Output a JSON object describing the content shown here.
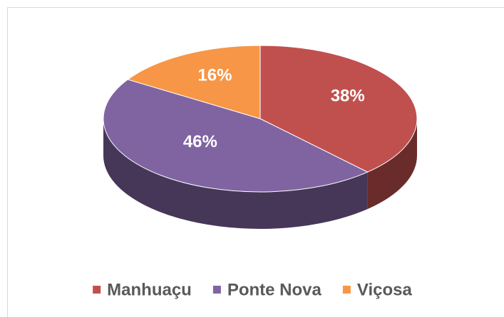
{
  "chart_data": {
    "type": "pie",
    "categories": [
      "Manhuaçu",
      "Ponte Nova",
      "Viçosa"
    ],
    "values": [
      38,
      46,
      16
    ],
    "value_labels": [
      "38%",
      "46%",
      "16%"
    ],
    "colors": [
      "#c0504d",
      "#8064a2",
      "#f79646"
    ],
    "legend": "bottom"
  }
}
